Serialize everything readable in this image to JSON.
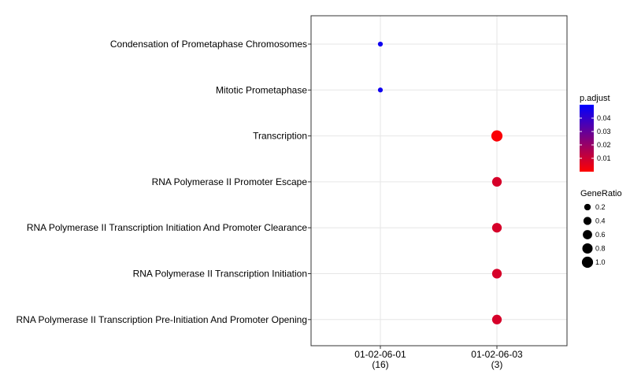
{
  "chart_data": {
    "type": "scatter",
    "categories_x": [
      {
        "name": "01-02-06-01",
        "count": "(16)"
      },
      {
        "name": "01-02-06-03",
        "count": "(3)"
      }
    ],
    "categories_y": [
      "Condensation of Prometaphase Chromosomes",
      "Mitotic Prometaphase",
      "Transcription",
      "RNA Polymerase II Promoter Escape",
      "RNA Polymerase II Transcription Initiation And Promoter Clearance",
      "RNA Polymerase II Transcription Initiation",
      "RNA Polymerase II Transcription Pre-Initiation And Promoter Opening"
    ],
    "points": [
      {
        "x": "01-02-06-01",
        "y": "Condensation of Prometaphase Chromosomes",
        "gene_ratio": 0.0625,
        "p_adjust": 0.047
      },
      {
        "x": "01-02-06-01",
        "y": "Mitotic Prometaphase",
        "gene_ratio": 0.0625,
        "p_adjust": 0.047
      },
      {
        "x": "01-02-06-03",
        "y": "Transcription",
        "gene_ratio": 1.0,
        "p_adjust": 0.001
      },
      {
        "x": "01-02-06-03",
        "y": "RNA Polymerase II Promoter Escape",
        "gene_ratio": 0.667,
        "p_adjust": 0.008
      },
      {
        "x": "01-02-06-03",
        "y": "RNA Polymerase II Transcription Initiation And Promoter Clearance",
        "gene_ratio": 0.667,
        "p_adjust": 0.008
      },
      {
        "x": "01-02-06-03",
        "y": "RNA Polymerase II Transcription Initiation",
        "gene_ratio": 0.667,
        "p_adjust": 0.008
      },
      {
        "x": "01-02-06-03",
        "y": "RNA Polymerase II Transcription Pre-Initiation And Promoter Opening",
        "gene_ratio": 0.667,
        "p_adjust": 0.008
      }
    ],
    "color_legend": {
      "title": "p.adjust",
      "low_color": "#ff0000",
      "high_color": "#0000ff",
      "range": [
        0.0,
        0.05
      ],
      "ticks": [
        0.01,
        0.02,
        0.03,
        0.04
      ],
      "tick_labels": [
        "0.01",
        "0.02",
        "0.03",
        "0.04"
      ]
    },
    "size_legend": {
      "title": "GeneRatio",
      "values": [
        0.2,
        0.4,
        0.6,
        0.8,
        1.0
      ],
      "labels": [
        "0.2",
        "0.4",
        "0.6",
        "0.8",
        "1.0"
      ]
    },
    "grid": true,
    "legend_position": "right"
  }
}
